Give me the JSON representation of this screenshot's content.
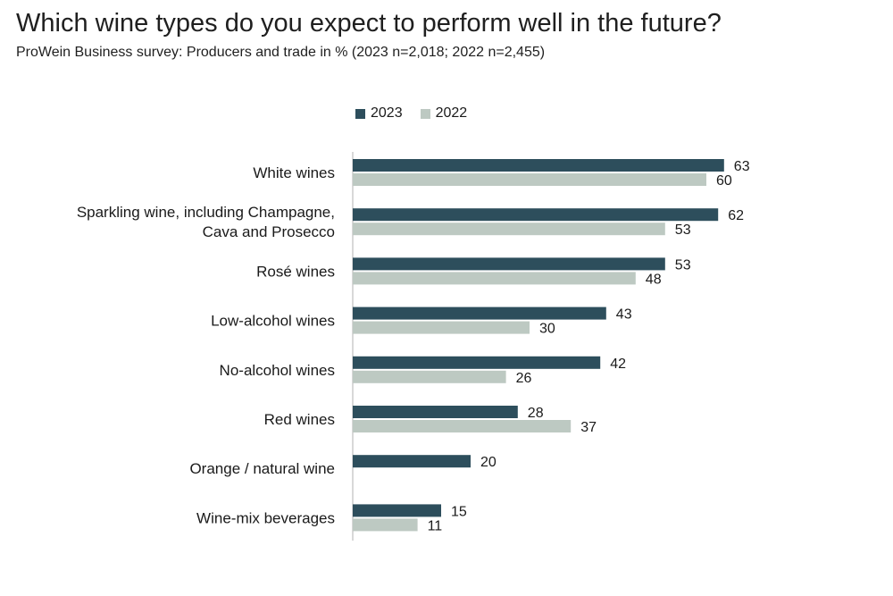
{
  "colors": {
    "series_2023": "#2d4e5c",
    "series_2022": "#bdc9c2",
    "axis": "#b0b0b0"
  },
  "chart_data": {
    "type": "bar",
    "orientation": "horizontal",
    "title": "Which wine types do you expect to perform well in the future?",
    "subtitle": "ProWein Business survey: Producers and trade in % (2023 n=2,018; 2022 n=2,455)",
    "categories": [
      [
        "White wines"
      ],
      [
        "Sparkling wine, including Champagne,",
        "Cava and Prosecco"
      ],
      [
        "Rosé wines"
      ],
      [
        "Low-alcohol wines"
      ],
      [
        "No-alcohol wines"
      ],
      [
        "Red wines"
      ],
      [
        "Orange / natural wine"
      ],
      [
        "Wine-mix beverages"
      ]
    ],
    "series": [
      {
        "name": "2023",
        "values": [
          63,
          62,
          53,
          43,
          42,
          28,
          20,
          15
        ]
      },
      {
        "name": "2022",
        "values": [
          60,
          53,
          48,
          30,
          26,
          37,
          null,
          11
        ]
      }
    ],
    "xlim": [
      0,
      70
    ],
    "legend": "top",
    "grid": false
  }
}
